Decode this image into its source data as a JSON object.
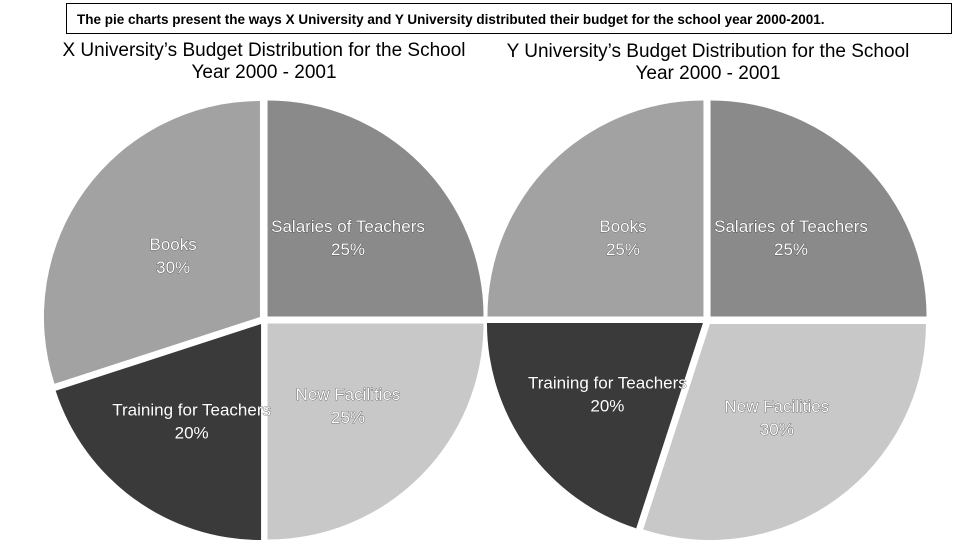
{
  "caption": "The pie charts present the ways X University and Y University distributed their budget for the school year 2000-2001.",
  "chart_data": [
    {
      "type": "pie",
      "title_line1": "X University’s Budget Distribution for the School",
      "title_line2": "Year 2000 - 2001",
      "slices": [
        {
          "label": "Salaries of Teachers",
          "value": 25,
          "value_label": "25%",
          "color": "#8a8a8a"
        },
        {
          "label": "New Facilities",
          "value": 25,
          "value_label": "25%",
          "color": "#c8c8c8"
        },
        {
          "label": "Training for Teachers",
          "value": 20,
          "value_label": "20%",
          "color": "#3a3a3a"
        },
        {
          "label": "Books",
          "value": 30,
          "value_label": "30%",
          "color": "#a2a2a2"
        }
      ]
    },
    {
      "type": "pie",
      "title_line1": "Y University’s Budget Distribution for the School",
      "title_line2": "Year 2000 - 2001",
      "slices": [
        {
          "label": "Salaries of Teachers",
          "value": 25,
          "value_label": "25%",
          "color": "#8a8a8a"
        },
        {
          "label": "New Facilities",
          "value": 30,
          "value_label": "30%",
          "color": "#c8c8c8"
        },
        {
          "label": "Training for Teachers",
          "value": 20,
          "value_label": "20%",
          "color": "#3a3a3a"
        },
        {
          "label": "Books",
          "value": 25,
          "value_label": "25%",
          "color": "#a2a2a2"
        }
      ]
    }
  ]
}
